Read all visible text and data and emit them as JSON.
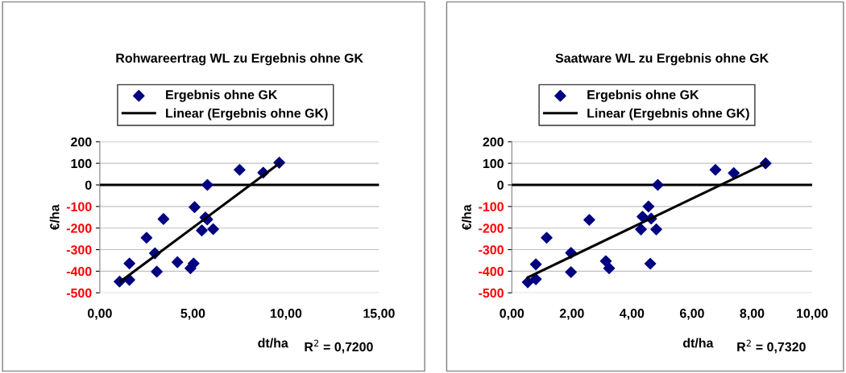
{
  "chart_data": [
    {
      "type": "scatter",
      "title": "Rohwareertrag WL zu Ergebnis ohne GK",
      "xlabel": "dt/ha",
      "ylabel": "€/ha",
      "annotations": [
        "R$^{2}$ = 0,7200"
      ],
      "grid": "y",
      "legend": "top",
      "xlim": [
        0,
        15
      ],
      "xticks": [
        {
          "value": 0,
          "label": "0,00"
        },
        {
          "value": 5,
          "label": "5,00"
        },
        {
          "value": 10,
          "label": "10,00"
        },
        {
          "value": 15,
          "label": "15,00"
        }
      ],
      "ylim": [
        -500,
        200
      ],
      "yticks": [
        -500,
        -400,
        -300,
        -200,
        -100,
        0,
        100,
        200
      ],
      "ref_lines": [
        {
          "axis": "y",
          "value": 0,
          "color": "#000000"
        }
      ],
      "series": [
        {
          "name": "Ergebnis ohne GK",
          "marker": "diamond",
          "color": "#000080",
          "x": [
            1.06,
            1.59,
            1.59,
            2.51,
            2.96,
            3.06,
            3.42,
            4.17,
            4.87,
            5.04,
            5.09,
            5.48,
            5.67,
            5.77,
            5.78,
            6.09,
            7.51,
            8.78,
            9.64
          ],
          "values": [
            -448,
            -364,
            -440,
            -245,
            -317,
            -402,
            -158,
            -358,
            -386,
            -364,
            -103,
            -211,
            -151,
            -160,
            0,
            -205,
            70,
            57,
            103
          ]
        },
        {
          "name": "Linear (Ergebnis ohne GK)",
          "type": "line",
          "color": "#000000",
          "x": [
            1.13,
            9.65
          ],
          "values": [
            -446,
            100
          ]
        }
      ]
    },
    {
      "type": "scatter",
      "title": "Saatware WL zu Ergebnis ohne GK",
      "xlabel": "dt/ha",
      "ylabel": "€/ha",
      "annotations": [
        "R$^{2}$ = 0,7320"
      ],
      "grid": "y",
      "legend": "top",
      "xlim": [
        0,
        10
      ],
      "xticks": [
        {
          "value": 0,
          "label": "0,00"
        },
        {
          "value": 2,
          "label": "2,00"
        },
        {
          "value": 4,
          "label": "4,00"
        },
        {
          "value": 6,
          "label": "6,00"
        },
        {
          "value": 8,
          "label": "8,00"
        },
        {
          "value": 10,
          "label": "10,00"
        }
      ],
      "ylim": [
        -500,
        200
      ],
      "yticks": [
        -500,
        -400,
        -300,
        -200,
        -100,
        0,
        100,
        200
      ],
      "ref_lines": [
        {
          "axis": "y",
          "value": 0,
          "color": "#000000"
        }
      ],
      "series": [
        {
          "name": "Ergebnis ohne GK",
          "marker": "diamond",
          "color": "#000080",
          "x": [
            0.53,
            0.8,
            0.8,
            1.16,
            1.97,
            1.97,
            2.58,
            3.13,
            3.24,
            4.3,
            4.35,
            4.55,
            4.64,
            4.61,
            4.81,
            4.86,
            6.78,
            7.39,
            8.45
          ],
          "values": [
            -451,
            -437,
            -368,
            -245,
            -315,
            -404,
            -162,
            -353,
            -386,
            -206,
            -147,
            -100,
            -156,
            -365,
            -206,
            0,
            70,
            55,
            100
          ]
        },
        {
          "name": "Linear (Ergebnis ohne GK)",
          "type": "line",
          "color": "#000000",
          "x": [
            0.53,
            8.45
          ],
          "values": [
            -429,
            100
          ]
        }
      ]
    }
  ]
}
